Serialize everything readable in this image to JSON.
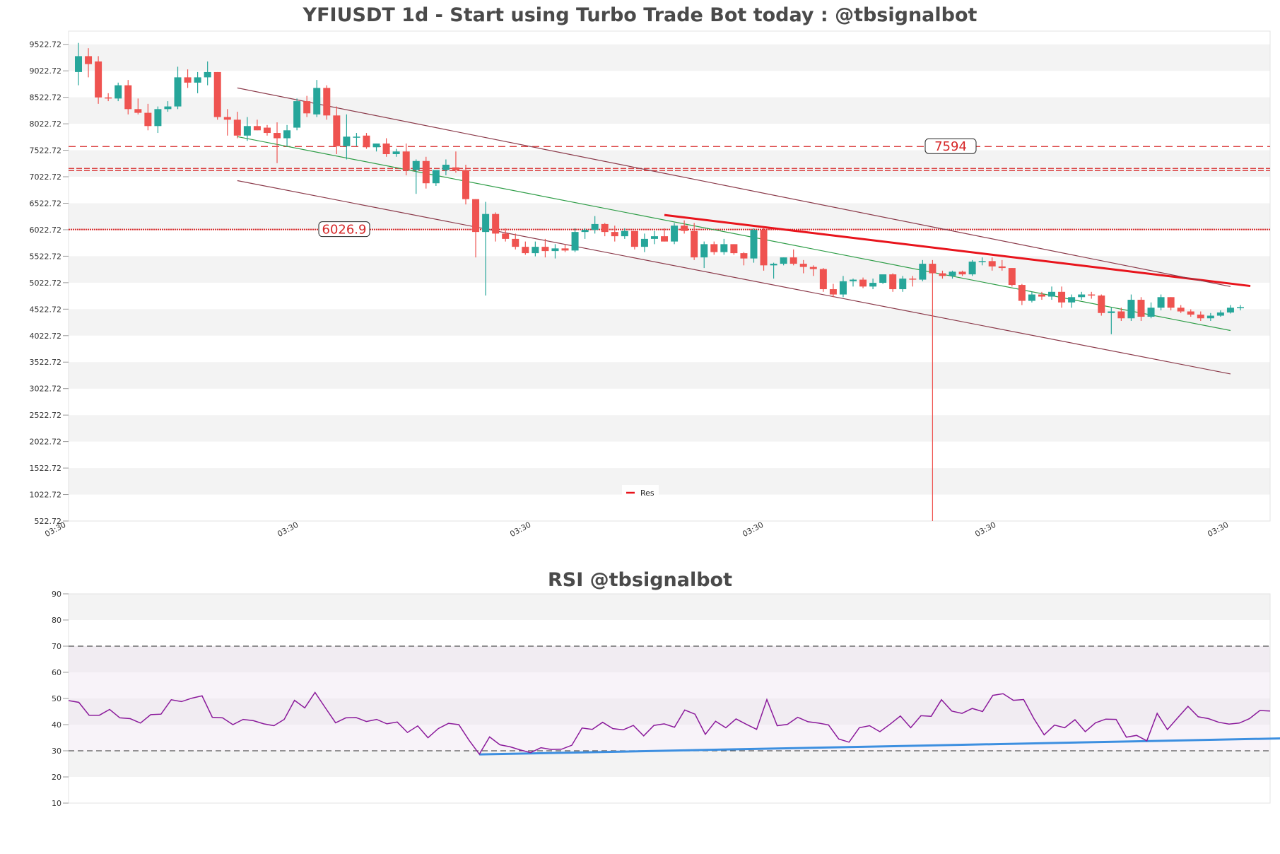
{
  "chart_data": [
    {
      "type": "candlestick",
      "title": "YFIUSDT 1d - Start using Turbo Trade Bot today : @tbsignalbot",
      "ylim": [
        522.72,
        9772.72
      ],
      "yticks": [
        522.72,
        1022.72,
        1522.72,
        2022.72,
        2522.72,
        3022.72,
        3522.72,
        4022.72,
        4522.72,
        5022.72,
        5522.72,
        6022.72,
        6522.72,
        7022.72,
        7522.72,
        8022.72,
        8522.72,
        9022.72,
        9522.72
      ],
      "ytick_labels": [
        "522.72",
        "1022.72",
        "1522.72",
        "2022.72",
        "2522.72",
        "3022.72",
        "3522.72",
        "4022.72",
        "4522.72",
        "5022.72",
        "5522.72",
        "6022.72",
        "6522.72",
        "7022.72",
        "7522.72",
        "8022.72",
        "8522.72",
        "9022.72",
        "9522.72"
      ],
      "xtick_labels": [
        "03:30",
        "03:30",
        "03:30",
        "03:30",
        "03:30",
        "03:30"
      ],
      "grid": "horizontal bands",
      "legend": {
        "placement": "lower-center",
        "entries": [
          "Res"
        ]
      },
      "horizontal_levels": [
        {
          "value": 7594,
          "label": "7594",
          "style": "dashed",
          "color": "#d62728"
        },
        {
          "value": 7160,
          "label": "",
          "style": "dashed-double",
          "color": "#d62728"
        },
        {
          "value": 6026.9,
          "label": "6026.9",
          "style": "dotted",
          "color": "#d62728"
        }
      ],
      "candles": [
        {
          "o": 9000,
          "h": 9550,
          "l": 8750,
          "c": 9300
        },
        {
          "o": 9300,
          "h": 9450,
          "l": 8900,
          "c": 9150
        },
        {
          "o": 9200,
          "h": 9300,
          "l": 8400,
          "c": 8520
        },
        {
          "o": 8520,
          "h": 8600,
          "l": 8450,
          "c": 8500
        },
        {
          "o": 8500,
          "h": 8800,
          "l": 8450,
          "c": 8750
        },
        {
          "o": 8750,
          "h": 8850,
          "l": 8200,
          "c": 8300
        },
        {
          "o": 8300,
          "h": 8500,
          "l": 8200,
          "c": 8230
        },
        {
          "o": 8230,
          "h": 8400,
          "l": 7900,
          "c": 7980
        },
        {
          "o": 7980,
          "h": 8350,
          "l": 7850,
          "c": 8300
        },
        {
          "o": 8300,
          "h": 8450,
          "l": 8250,
          "c": 8350
        },
        {
          "o": 8350,
          "h": 9100,
          "l": 8300,
          "c": 8900
        },
        {
          "o": 8900,
          "h": 9050,
          "l": 8700,
          "c": 8800
        },
        {
          "o": 8800,
          "h": 9000,
          "l": 8600,
          "c": 8900
        },
        {
          "o": 8900,
          "h": 9200,
          "l": 8750,
          "c": 9000
        },
        {
          "o": 9000,
          "h": 9000,
          "l": 8100,
          "c": 8150
        },
        {
          "o": 8150,
          "h": 8300,
          "l": 7800,
          "c": 8100
        },
        {
          "o": 8100,
          "h": 8250,
          "l": 7750,
          "c": 7800
        },
        {
          "o": 7800,
          "h": 8150,
          "l": 7700,
          "c": 7980
        },
        {
          "o": 7980,
          "h": 8100,
          "l": 7900,
          "c": 7900
        },
        {
          "o": 7950,
          "h": 8000,
          "l": 7800,
          "c": 7850
        },
        {
          "o": 7850,
          "h": 8050,
          "l": 7280,
          "c": 7750
        },
        {
          "o": 7750,
          "h": 8000,
          "l": 7600,
          "c": 7900
        },
        {
          "o": 7950,
          "h": 8500,
          "l": 7900,
          "c": 8450
        },
        {
          "o": 8450,
          "h": 8550,
          "l": 8150,
          "c": 8220
        },
        {
          "o": 8200,
          "h": 8850,
          "l": 8150,
          "c": 8700
        },
        {
          "o": 8700,
          "h": 8750,
          "l": 8100,
          "c": 8180
        },
        {
          "o": 8180,
          "h": 8350,
          "l": 7450,
          "c": 7600
        },
        {
          "o": 7600,
          "h": 8200,
          "l": 7350,
          "c": 7780
        },
        {
          "o": 7780,
          "h": 7850,
          "l": 7600,
          "c": 7780
        },
        {
          "o": 7800,
          "h": 7850,
          "l": 7550,
          "c": 7580
        },
        {
          "o": 7580,
          "h": 7650,
          "l": 7500,
          "c": 7650
        },
        {
          "o": 7650,
          "h": 7750,
          "l": 7400,
          "c": 7450
        },
        {
          "o": 7450,
          "h": 7550,
          "l": 7400,
          "c": 7500
        },
        {
          "o": 7500,
          "h": 7650,
          "l": 7050,
          "c": 7150
        },
        {
          "o": 7150,
          "h": 7350,
          "l": 6700,
          "c": 7320
        },
        {
          "o": 7320,
          "h": 7400,
          "l": 6800,
          "c": 6900
        },
        {
          "o": 6900,
          "h": 7100,
          "l": 6850,
          "c": 7150
        },
        {
          "o": 7150,
          "h": 7350,
          "l": 7050,
          "c": 7250
        },
        {
          "o": 7200,
          "h": 7500,
          "l": 7100,
          "c": 7150
        },
        {
          "o": 7150,
          "h": 7250,
          "l": 6500,
          "c": 6600
        },
        {
          "o": 6600,
          "h": 6600,
          "l": 5500,
          "c": 5980
        },
        {
          "o": 5980,
          "h": 6550,
          "l": 4780,
          "c": 6320
        },
        {
          "o": 6320,
          "h": 6350,
          "l": 5800,
          "c": 5950
        },
        {
          "o": 5950,
          "h": 6050,
          "l": 5800,
          "c": 5850
        },
        {
          "o": 5850,
          "h": 5950,
          "l": 5650,
          "c": 5700
        },
        {
          "o": 5700,
          "h": 5800,
          "l": 5550,
          "c": 5580
        },
        {
          "o": 5580,
          "h": 5800,
          "l": 5520,
          "c": 5700
        },
        {
          "o": 5700,
          "h": 5850,
          "l": 5500,
          "c": 5620
        },
        {
          "o": 5620,
          "h": 5750,
          "l": 5480,
          "c": 5670
        },
        {
          "o": 5670,
          "h": 5750,
          "l": 5600,
          "c": 5630
        },
        {
          "o": 5630,
          "h": 6050,
          "l": 5600,
          "c": 5980
        },
        {
          "o": 5980,
          "h": 6050,
          "l": 5850,
          "c": 6020
        },
        {
          "o": 6020,
          "h": 6280,
          "l": 5950,
          "c": 6130
        },
        {
          "o": 6130,
          "h": 6150,
          "l": 5900,
          "c": 5980
        },
        {
          "o": 5980,
          "h": 6100,
          "l": 5800,
          "c": 5900
        },
        {
          "o": 5900,
          "h": 6050,
          "l": 5850,
          "c": 6000
        },
        {
          "o": 6000,
          "h": 6000,
          "l": 5650,
          "c": 5700
        },
        {
          "o": 5700,
          "h": 5950,
          "l": 5600,
          "c": 5850
        },
        {
          "o": 5850,
          "h": 6000,
          "l": 5750,
          "c": 5900
        },
        {
          "o": 5900,
          "h": 6050,
          "l": 5800,
          "c": 5800
        },
        {
          "o": 5800,
          "h": 6150,
          "l": 5750,
          "c": 6100
        },
        {
          "o": 6100,
          "h": 6200,
          "l": 5950,
          "c": 6000
        },
        {
          "o": 6000,
          "h": 6150,
          "l": 5450,
          "c": 5500
        },
        {
          "o": 5500,
          "h": 5800,
          "l": 5300,
          "c": 5750
        },
        {
          "o": 5750,
          "h": 5800,
          "l": 5550,
          "c": 5600
        },
        {
          "o": 5600,
          "h": 5850,
          "l": 5550,
          "c": 5750
        },
        {
          "o": 5750,
          "h": 5750,
          "l": 5550,
          "c": 5580
        },
        {
          "o": 5580,
          "h": 5600,
          "l": 5350,
          "c": 5480
        },
        {
          "o": 5480,
          "h": 6050,
          "l": 5400,
          "c": 6020
        },
        {
          "o": 6020,
          "h": 6050,
          "l": 5250,
          "c": 5350
        },
        {
          "o": 5350,
          "h": 5400,
          "l": 5100,
          "c": 5380
        },
        {
          "o": 5380,
          "h": 5500,
          "l": 5350,
          "c": 5500
        },
        {
          "o": 5500,
          "h": 5650,
          "l": 5350,
          "c": 5380
        },
        {
          "o": 5380,
          "h": 5450,
          "l": 5200,
          "c": 5320
        },
        {
          "o": 5320,
          "h": 5350,
          "l": 5150,
          "c": 5280
        },
        {
          "o": 5280,
          "h": 5300,
          "l": 4850,
          "c": 4900
        },
        {
          "o": 4900,
          "h": 5000,
          "l": 4750,
          "c": 4800
        },
        {
          "o": 4800,
          "h": 5150,
          "l": 4750,
          "c": 5050
        },
        {
          "o": 5050,
          "h": 5100,
          "l": 4950,
          "c": 5080
        },
        {
          "o": 5080,
          "h": 5120,
          "l": 4920,
          "c": 4950
        },
        {
          "o": 4950,
          "h": 5100,
          "l": 4900,
          "c": 5020
        },
        {
          "o": 5020,
          "h": 5150,
          "l": 5000,
          "c": 5180
        },
        {
          "o": 5180,
          "h": 5200,
          "l": 4850,
          "c": 4900
        },
        {
          "o": 4900,
          "h": 5150,
          "l": 4850,
          "c": 5100
        },
        {
          "o": 5100,
          "h": 5150,
          "l": 4950,
          "c": 5080
        },
        {
          "o": 5080,
          "h": 5450,
          "l": 5050,
          "c": 5380
        },
        {
          "o": 5380,
          "h": 5450,
          "l": 500,
          "c": 5200
        },
        {
          "o": 5200,
          "h": 5250,
          "l": 5100,
          "c": 5150
        },
        {
          "o": 5150,
          "h": 5250,
          "l": 5100,
          "c": 5230
        },
        {
          "o": 5230,
          "h": 5250,
          "l": 5150,
          "c": 5180
        },
        {
          "o": 5180,
          "h": 5450,
          "l": 5150,
          "c": 5420
        },
        {
          "o": 5420,
          "h": 5500,
          "l": 5350,
          "c": 5430
        },
        {
          "o": 5430,
          "h": 5500,
          "l": 5250,
          "c": 5330
        },
        {
          "o": 5330,
          "h": 5450,
          "l": 5250,
          "c": 5300
        },
        {
          "o": 5300,
          "h": 5300,
          "l": 4950,
          "c": 4980
        },
        {
          "o": 4980,
          "h": 5000,
          "l": 4600,
          "c": 4680
        },
        {
          "o": 4680,
          "h": 4850,
          "l": 4650,
          "c": 4800
        },
        {
          "o": 4800,
          "h": 4850,
          "l": 4700,
          "c": 4760
        },
        {
          "o": 4760,
          "h": 4950,
          "l": 4700,
          "c": 4850
        },
        {
          "o": 4850,
          "h": 4950,
          "l": 4550,
          "c": 4650
        },
        {
          "o": 4650,
          "h": 4800,
          "l": 4550,
          "c": 4750
        },
        {
          "o": 4750,
          "h": 4850,
          "l": 4700,
          "c": 4800
        },
        {
          "o": 4800,
          "h": 4850,
          "l": 4720,
          "c": 4780
        },
        {
          "o": 4780,
          "h": 4800,
          "l": 4400,
          "c": 4450
        },
        {
          "o": 4450,
          "h": 4550,
          "l": 4050,
          "c": 4480
        },
        {
          "o": 4480,
          "h": 4550,
          "l": 4300,
          "c": 4350
        },
        {
          "o": 4350,
          "h": 4800,
          "l": 4300,
          "c": 4700
        },
        {
          "o": 4700,
          "h": 4750,
          "l": 4300,
          "c": 4380
        },
        {
          "o": 4380,
          "h": 4650,
          "l": 4350,
          "c": 4550
        },
        {
          "o": 4550,
          "h": 4800,
          "l": 4500,
          "c": 4750
        },
        {
          "o": 4750,
          "h": 4750,
          "l": 4500,
          "c": 4550
        },
        {
          "o": 4550,
          "h": 4600,
          "l": 4450,
          "c": 4480
        },
        {
          "o": 4480,
          "h": 4520,
          "l": 4380,
          "c": 4420
        },
        {
          "o": 4420,
          "h": 4480,
          "l": 4300,
          "c": 4350
        },
        {
          "o": 4350,
          "h": 4450,
          "l": 4300,
          "c": 4400
        },
        {
          "o": 4400,
          "h": 4500,
          "l": 4380,
          "c": 4460
        },
        {
          "o": 4460,
          "h": 4600,
          "l": 4440,
          "c": 4550
        },
        {
          "o": 4550,
          "h": 4600,
          "l": 4500,
          "c": 4560
        }
      ],
      "trendlines": [
        {
          "name": "Res",
          "color": "#e8141c",
          "from": [
            59,
            6300
          ],
          "to": [
            118,
            4960
          ]
        },
        {
          "name": "",
          "color": "#2e9d47",
          "from": [
            16,
            7780
          ],
          "to": [
            116,
            4120
          ]
        },
        {
          "name": "",
          "color": "#8b3a4a",
          "from": [
            16,
            8700
          ],
          "to": [
            116,
            4950
          ]
        },
        {
          "name": "",
          "color": "#8b3a4a",
          "from": [
            16,
            6950
          ],
          "to": [
            116,
            3300
          ]
        }
      ]
    },
    {
      "type": "line",
      "title": "RSI @tbsignalbot",
      "ylim": [
        10,
        90
      ],
      "yticks": [
        10,
        20,
        30,
        40,
        50,
        60,
        70,
        80,
        90
      ],
      "ytick_labels": [
        "10",
        "20",
        "30",
        "40",
        "50",
        "60",
        "70",
        "80",
        "90"
      ],
      "reference_lines": [
        70,
        30
      ],
      "grid": "horizontal bands",
      "series": [
        {
          "name": "",
          "color": "#8b1a9b",
          "values": [
            49.2,
            48.5,
            43.6,
            43.6,
            45.8,
            42.6,
            42.3,
            40.6,
            43.8,
            44.0,
            49.5,
            48.8,
            50.1,
            51.0,
            42.8,
            42.6,
            40.0,
            42.0,
            41.5,
            40.3,
            39.6,
            42.0,
            49.3,
            46.4,
            52.3,
            46.5,
            40.7,
            42.6,
            42.7,
            41.2,
            42.0,
            40.3,
            41.0,
            37.0,
            39.5,
            35.0,
            38.5,
            40.5,
            40.0,
            34.0,
            28.7,
            35.3,
            32.3,
            31.5,
            30.3,
            29.3,
            31.2,
            30.5,
            30.6,
            32.1,
            38.7,
            38.2,
            40.9,
            38.5,
            38.0,
            39.7,
            35.7,
            39.7,
            40.3,
            39.0,
            45.6,
            44.0,
            36.3,
            41.3,
            38.8,
            42.2,
            40.1,
            38.2,
            49.6,
            39.6,
            40.1,
            42.8,
            41.1,
            40.6,
            39.9,
            34.5,
            33.3,
            38.8,
            39.6,
            37.3,
            40.2,
            43.3,
            38.8,
            43.4,
            43.2,
            49.5,
            45.2,
            44.3,
            46.2,
            45.0,
            51.2,
            51.8,
            49.3,
            49.6,
            42.3,
            36.1,
            39.8,
            38.8,
            41.9,
            37.3,
            40.7,
            42.1,
            42.0,
            35.2,
            35.9,
            33.8,
            44.3,
            38.1,
            42.6,
            47.0,
            43.0,
            42.3,
            40.9,
            40.2,
            40.6,
            42.3,
            45.4,
            45.2
          ]
        },
        {
          "name": "",
          "color": "#3d8fe0",
          "trendline": {
            "from": [
              40,
              28.6
            ],
            "to": [
              119,
              34.8
            ]
          }
        }
      ]
    }
  ]
}
